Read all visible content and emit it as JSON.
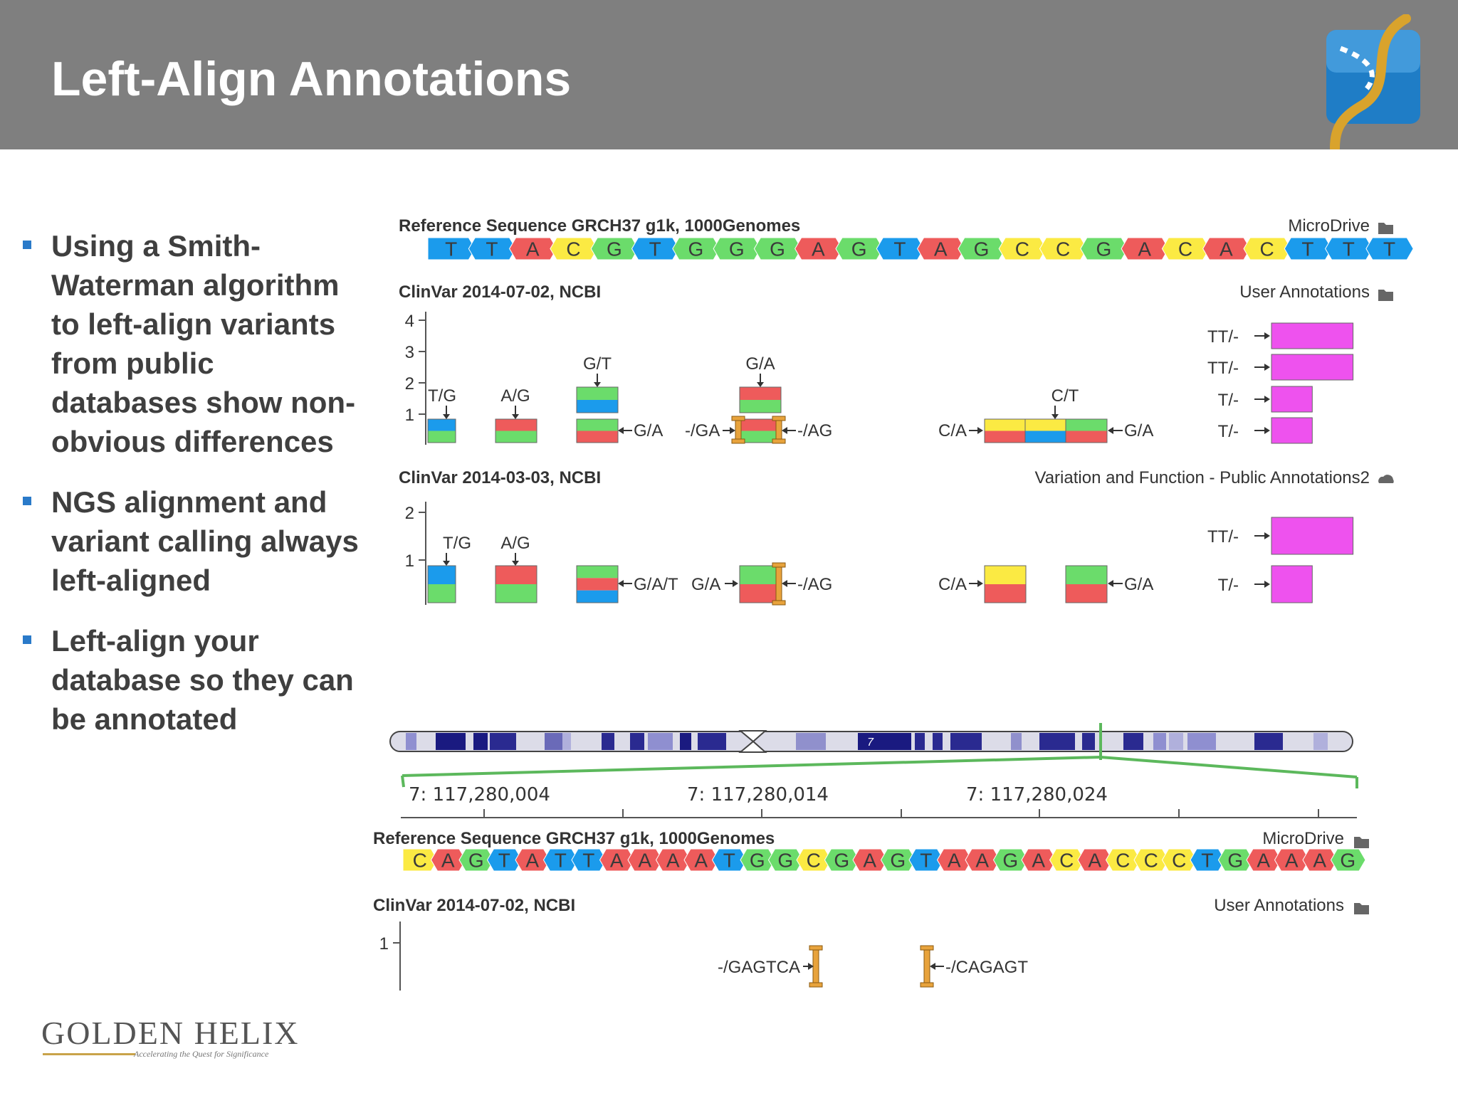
{
  "slide": {
    "title": "Left-Align Annotations",
    "colors": {
      "header": "#7f7f7f",
      "title": "#ffffff",
      "bullet_text": "#3f3f3f",
      "bullet_marker": "#2a7ac9"
    },
    "logo_icon": "dna-helix-icon",
    "bullets": [
      "Using a Smith-Waterman algorithm to left-align variants from public databases show non-obvious differences",
      "NGS alignment and variant calling always left-aligned",
      "Left-align your database so they can be annotated"
    ],
    "company_logo": {
      "name": "GOLDEN HELIX",
      "tagline": "Accelerating the Quest for Significance"
    }
  },
  "diagram": {
    "colors": {
      "A": "#ee5b5b",
      "C": "#fbea43",
      "G": "#6bdc6b",
      "T": "#1b9bec",
      "insertion": "#e8a33c",
      "user_annotation": "#ee52ee",
      "axis": "#555555"
    },
    "panel_top": {
      "reference": {
        "label": "Reference Sequence GRCH37 g1k, 1000Genomes",
        "source": "MicroDrive",
        "source_icon": "folder-icon",
        "bases": [
          "T",
          "T",
          "A",
          "C",
          "G",
          "T",
          "G",
          "G",
          "G",
          "A",
          "G",
          "T",
          "A",
          "G",
          "C",
          "C",
          "G",
          "A",
          "C",
          "A",
          "C",
          "T",
          "T",
          "T"
        ]
      },
      "clinvar_new": {
        "label": "ClinVar 2014-07-02, NCBI",
        "source": "User Annotations",
        "source_icon": "folder-icon",
        "axis_ticks": [
          "4",
          "3",
          "2",
          "1"
        ],
        "variants": [
          {
            "label": "T/G",
            "colors": [
              "T",
              "G"
            ]
          },
          {
            "label": "A/G",
            "colors": [
              "A",
              "G"
            ]
          },
          {
            "label": "G/T",
            "colors": [
              "G",
              "T"
            ]
          },
          {
            "label": "G/A",
            "colors": [
              "A",
              "G"
            ]
          },
          {
            "label": "G/A",
            "colors": [
              "G",
              "A"
            ]
          },
          {
            "label": "G/A",
            "colors": [
              "A",
              "G"
            ]
          },
          {
            "label": "-/GA"
          },
          {
            "label": "-/AG"
          },
          {
            "label": "C/A",
            "colors": [
              "C",
              "A"
            ]
          },
          {
            "label": "C/T",
            "colors": [
              "C",
              "T"
            ]
          },
          {
            "label": "G/A",
            "colors": [
              "G",
              "A"
            ]
          }
        ],
        "user_annotations": [
          {
            "label": "TT/-",
            "length_bp": 2
          },
          {
            "label": "TT/-",
            "length_bp": 2
          },
          {
            "label": "T/-",
            "length_bp": 1
          },
          {
            "label": "T/-",
            "length_bp": 1
          }
        ]
      },
      "clinvar_old": {
        "label": "ClinVar 2014-03-03, NCBI",
        "source": "Variation and Function - Public Annotations2",
        "source_icon": "cloud-icon",
        "axis_ticks": [
          "2",
          "1"
        ],
        "variants": [
          {
            "label": "T/G",
            "colors": [
              "T",
              "G"
            ]
          },
          {
            "label": "A/G",
            "colors": [
              "A",
              "G"
            ]
          },
          {
            "label": "G/A/T",
            "colors": [
              "G",
              "A",
              "T"
            ]
          },
          {
            "label": "G/A",
            "colors": [
              "G",
              "A"
            ]
          },
          {
            "label": "-/AG"
          },
          {
            "label": "C/A",
            "colors": [
              "C",
              "A"
            ]
          },
          {
            "label": "G/A",
            "colors": [
              "G",
              "A"
            ]
          }
        ],
        "user_annotations": [
          {
            "label": "TT/-",
            "length_bp": 2
          },
          {
            "label": "T/-",
            "length_bp": 1
          }
        ]
      }
    },
    "chromosome": {
      "label": "7"
    },
    "coordinates": [
      "7: 117,280,004",
      "7: 117,280,014",
      "7: 117,280,024"
    ],
    "panel_bottom": {
      "reference": {
        "label": "Reference Sequence GRCH37 g1k, 1000Genomes",
        "source": "MicroDrive",
        "source_icon": "folder-icon",
        "bases": [
          "C",
          "A",
          "G",
          "T",
          "A",
          "T",
          "T",
          "A",
          "A",
          "A",
          "A",
          "T",
          "G",
          "G",
          "C",
          "G",
          "A",
          "G",
          "T",
          "A",
          "A",
          "G",
          "A",
          "C",
          "A",
          "C",
          "C",
          "C",
          "T",
          "G",
          "A",
          "A",
          "A",
          "G"
        ]
      },
      "clinvar_new": {
        "label": "ClinVar 2014-07-02, NCBI",
        "source": "User Annotations",
        "source_icon": "folder-icon",
        "axis_ticks": [
          "1"
        ],
        "insertions": [
          "-/GAGTCA",
          "-/CAGAGT"
        ]
      }
    }
  }
}
